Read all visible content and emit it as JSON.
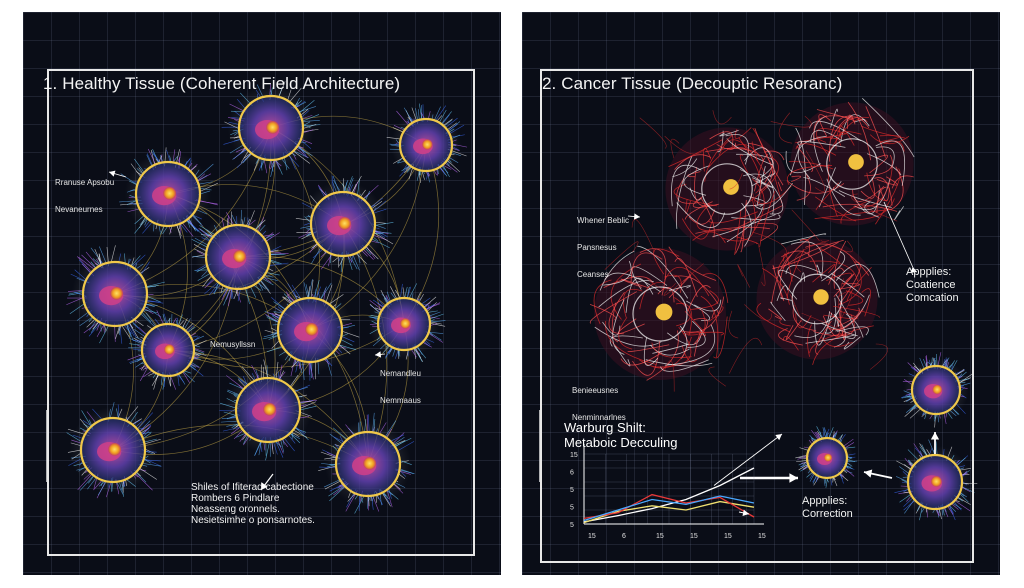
{
  "left_panel": {
    "title": "1. Healthy Tissue (Coherent Field Architecture)",
    "annotation_top_left": [
      "Rranuse Apsobu",
      "Nevaneurnes"
    ],
    "annotation_mid": [
      "Nemusyllssn"
    ],
    "annotation_right": [
      "Nemandleu",
      "Nemmaaus"
    ],
    "bottom_caption": [
      "Shiles of Ifiterad cabectione",
      "Rombers 6 Pindlare",
      "Neasseng oronnels.",
      "Nesietsimhe o ponsarnotes."
    ]
  },
  "right_panel": {
    "title": "2. Cancer Tissue (Decouptic Resoranc)",
    "annotation_top_left": [
      "Whener Beblic",
      "Pansnesus",
      "Ceanses"
    ],
    "annotation_mid_left": [
      "Benieeusnes",
      "Nenminnarlnes"
    ],
    "annotation_right": [
      "Appplies:",
      "Coatience",
      "Comcation"
    ],
    "warburg_title": [
      "Warburg Shilt:",
      "Metaboic Decculing"
    ],
    "correction_label": [
      "Appplies:",
      "Correction"
    ]
  },
  "chart_data": {
    "type": "line",
    "x": [
      "15",
      "6",
      "15",
      "15",
      "15",
      "15"
    ],
    "series": [
      {
        "values": [
          3,
          12,
          22,
          35,
          55,
          80
        ],
        "color": "#ffffff"
      },
      {
        "values": [
          2,
          18,
          26,
          20,
          32,
          24
        ],
        "color": "#f0e070"
      },
      {
        "values": [
          8,
          16,
          42,
          30,
          38,
          10
        ],
        "color": "#e83838"
      },
      {
        "values": [
          5,
          20,
          35,
          28,
          40,
          30
        ],
        "color": "#4aa8ff"
      }
    ],
    "y_ticks": [
      "15",
      "6",
      "5",
      "5",
      "5"
    ],
    "title": "Warburg Shilt: Metaboic Decculing",
    "grid": true
  },
  "colors": {
    "background": "#0a0d17",
    "healthy_ring": "#f0c84a",
    "cancer_thread": "#e02a2a",
    "grid": "#7882a0"
  }
}
